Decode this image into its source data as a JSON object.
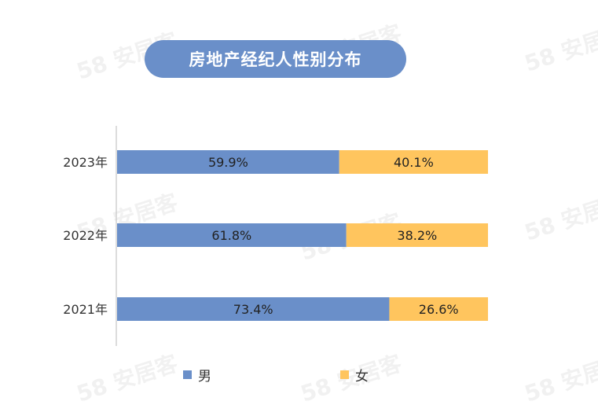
{
  "watermark": {
    "number": "58",
    "brand": "安居客"
  },
  "title": "房地产经纪人性别分布",
  "chart_data": {
    "type": "bar",
    "orientation": "horizontal",
    "stacked": true,
    "percent_stacked": true,
    "categories": [
      "2023年",
      "2022年",
      "2021年"
    ],
    "series": [
      {
        "name": "男",
        "color": "#6a8fc9",
        "values": [
          59.9,
          61.8,
          73.4
        ],
        "labels": [
          "59.9%",
          "61.8%",
          "73.4%"
        ]
      },
      {
        "name": "女",
        "color": "#ffc55e",
        "values": [
          40.1,
          38.2,
          26.6
        ],
        "labels": [
          "40.1%",
          "38.2%",
          "26.6%"
        ]
      }
    ],
    "xlim": [
      0,
      100
    ],
    "grid": false,
    "legend_position": "bottom"
  }
}
